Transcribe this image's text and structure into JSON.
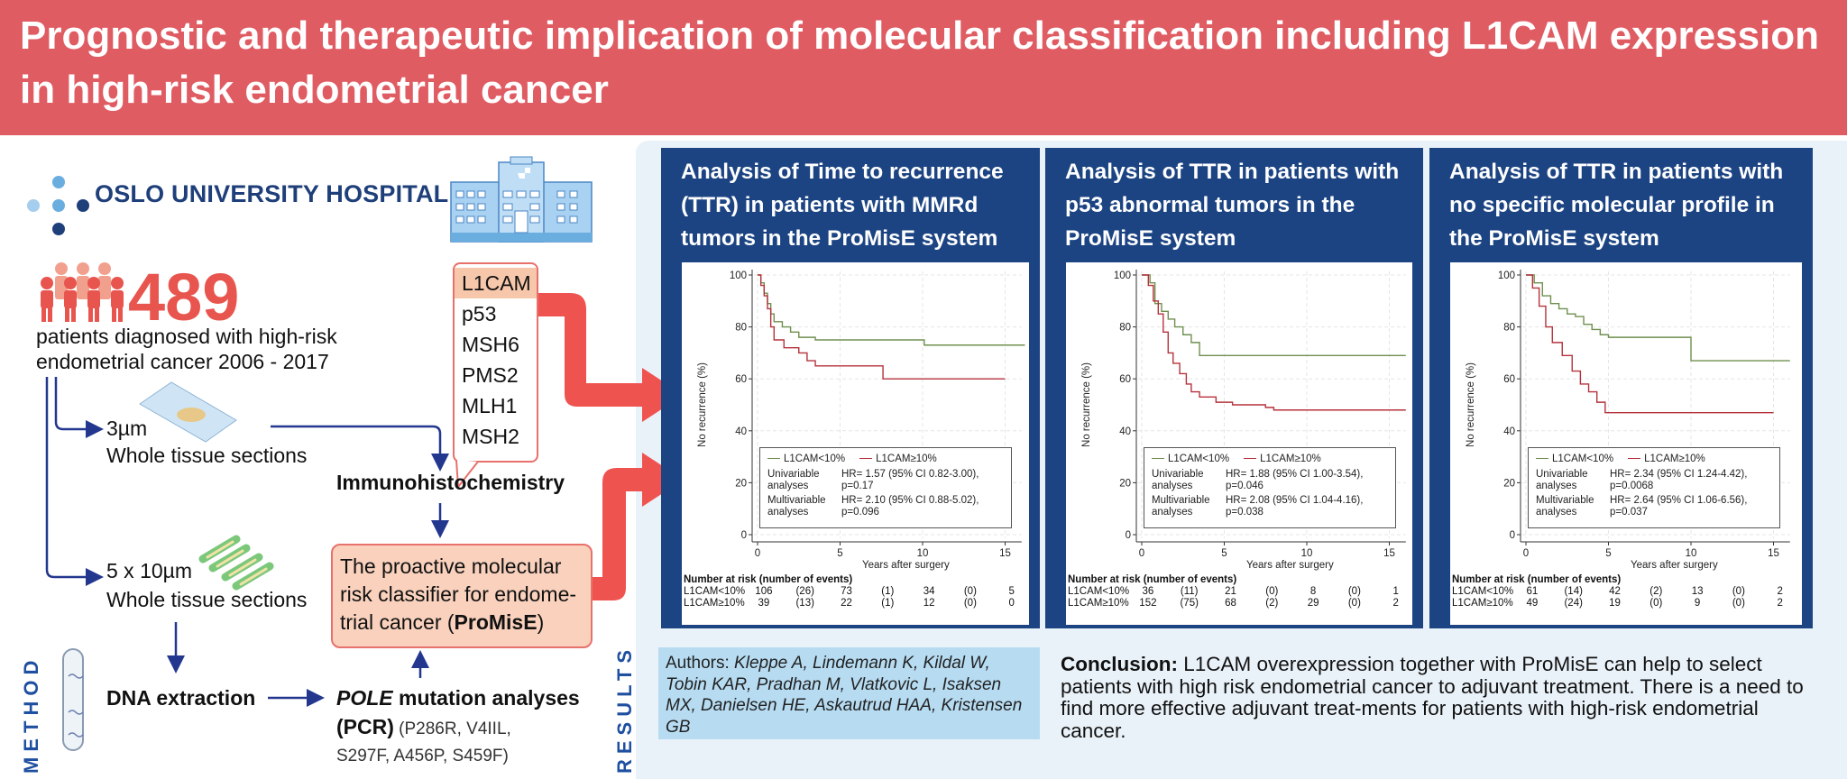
{
  "header": {
    "title": "Prognostic and therapeutic implication of molecular classification including L1CAM expression in high-risk endometrial cancer"
  },
  "colors": {
    "header": "#e05c63",
    "accent_red": "#e8554e",
    "panel_blue": "#1c4483",
    "flow_blue": "#23378f",
    "results_bg": "#eaf2f9",
    "authors_bg": "#b7dcf2",
    "promise_bg": "#f9d1bd"
  },
  "method": {
    "label": "METHOD",
    "logo_text": "OSLO UNIVERSITY HOSPITAL",
    "patient_count": "489",
    "patient_desc_1": "patients diagnosed with high-risk",
    "patient_desc_2": "endometrial cancer 2006 - 2017",
    "section_3um": "3µm",
    "section_3um_desc": "Whole tissue sections",
    "section_10um": "5 x 10µm",
    "section_10um_desc": "Whole tissue sections",
    "ihc_markers": [
      "L1CAM",
      "p53",
      "MSH6",
      "PMS2",
      "MLH1",
      "MSH2"
    ],
    "ihc_label": "Immunohistochemistry",
    "promise_text": "The proactive molecular risk classifier for endome-trial cancer (",
    "promise_bold": "ProMisE",
    "promise_close": ")",
    "dna_label": "DNA extraction",
    "pole_italic": "POLE",
    "pole_rest": " mutation analyses",
    "pcr_bold": "(PCR)",
    "pcr_mutations": " (P286R, V4IIL, S297F, A456P, S459F)"
  },
  "results": {
    "label": "RESULTS",
    "authors_label": "Authors: ",
    "authors_names": "Kleppe A, Lindemann K, Kildal W, Tobin KAR, Pradhan M, Vlatkovic L, Isaksen MX, Danielsen HE, Askautrud HAA, Kristensen GB",
    "conclusion_label": "Conclusion:",
    "conclusion_text": " L1CAM overexpression together with ProMisE can help to select patients with high risk endometrial cancer to adjuvant treatment. There is a need to find more effective adjuvant treat-ments for patients with high-risk endometrial cancer."
  },
  "chart_data": [
    {
      "type": "line",
      "title": "Analysis of Time to recurrence (TTR) in patients with MMRd tumors in the ProMisE system",
      "ylabel": "No recurrence (%)",
      "xlabel": "Years after surgery",
      "xlim": [
        0,
        16
      ],
      "ylim": [
        0,
        100
      ],
      "xticks": [
        0,
        5,
        10,
        15
      ],
      "yticks": [
        0,
        20,
        40,
        60,
        80,
        100
      ],
      "grid": true,
      "series": [
        {
          "name": "L1CAM<10%",
          "color": "#6f8f4f",
          "points": [
            [
              0,
              100
            ],
            [
              0.2,
              97
            ],
            [
              0.4,
              93
            ],
            [
              0.6,
              89
            ],
            [
              0.8,
              85
            ],
            [
              1,
              82
            ],
            [
              1.5,
              80
            ],
            [
              2,
              78
            ],
            [
              2.5,
              76
            ],
            [
              3.5,
              75
            ],
            [
              10,
              75
            ],
            [
              10.1,
              73
            ],
            [
              16.2,
              73
            ]
          ]
        },
        {
          "name": "L1CAM≥10%",
          "color": "#b5323c",
          "points": [
            [
              0,
              100
            ],
            [
              0.2,
              96
            ],
            [
              0.4,
              92
            ],
            [
              0.6,
              87
            ],
            [
              0.8,
              80
            ],
            [
              1,
              75
            ],
            [
              1.6,
              72
            ],
            [
              2.5,
              70
            ],
            [
              3,
              67
            ],
            [
              3.5,
              65
            ],
            [
              7.5,
              65
            ],
            [
              7.6,
              60
            ],
            [
              15,
              60
            ]
          ]
        }
      ],
      "stats": [
        {
          "label": "Univariable analyses",
          "text": "HR= 1.57 (95% CI 0.82-3.00), p=0.17"
        },
        {
          "label": "Multivariable analyses",
          "text": "HR= 2.10 (95% CI 0.88-5.02), p=0.096"
        }
      ],
      "risk_table": {
        "title": "Number at risk (number of events)",
        "rows": [
          {
            "label": "L1CAM<10%",
            "values": [
              "106",
              "(26)",
              "73",
              "(1)",
              "34",
              "(0)",
              "5"
            ]
          },
          {
            "label": "L1CAM≥10%",
            "values": [
              "39",
              "(13)",
              "22",
              "(1)",
              "12",
              "(0)",
              "0"
            ]
          }
        ]
      }
    },
    {
      "type": "line",
      "title": "Analysis of TTR in patients with p53 abnormal tumors in the ProMisE system",
      "ylabel": "No recurrence (%)",
      "xlabel": "Years after surgery",
      "xlim": [
        0,
        16
      ],
      "ylim": [
        0,
        100
      ],
      "xticks": [
        0,
        5,
        10,
        15
      ],
      "yticks": [
        0,
        20,
        40,
        60,
        80,
        100
      ],
      "grid": true,
      "series": [
        {
          "name": "L1CAM<10%",
          "color": "#6f8f4f",
          "points": [
            [
              0,
              100
            ],
            [
              0.5,
              97
            ],
            [
              0.8,
              89
            ],
            [
              1.2,
              86
            ],
            [
              1.6,
              83
            ],
            [
              2,
              80
            ],
            [
              2.5,
              77
            ],
            [
              3,
              74
            ],
            [
              3.5,
              69
            ],
            [
              16,
              69
            ]
          ]
        },
        {
          "name": "L1CAM≥10%",
          "color": "#b5323c",
          "points": [
            [
              0,
              100
            ],
            [
              0.4,
              96
            ],
            [
              0.7,
              90
            ],
            [
              1,
              85
            ],
            [
              1.3,
              78
            ],
            [
              1.6,
              70
            ],
            [
              1.9,
              66
            ],
            [
              2.3,
              62
            ],
            [
              2.7,
              58
            ],
            [
              3,
              55
            ],
            [
              3.5,
              53
            ],
            [
              4.5,
              51
            ],
            [
              5.5,
              50
            ],
            [
              7.5,
              49
            ],
            [
              8,
              48
            ],
            [
              16,
              48
            ]
          ]
        }
      ],
      "stats": [
        {
          "label": "Univariable analyses",
          "text": "HR= 1.88 (95% CI 1.00-3.54), p=0.046"
        },
        {
          "label": "Multivariable analyses",
          "text": "HR= 2.08 (95% CI 1.04-4.16), p=0.038"
        }
      ],
      "risk_table": {
        "title": "Number at risk (number of events)",
        "rows": [
          {
            "label": "L1CAM<10%",
            "values": [
              "36",
              "(11)",
              "21",
              "(0)",
              "8",
              "(0)",
              "1"
            ]
          },
          {
            "label": "L1CAM≥10%",
            "values": [
              "152",
              "(75)",
              "68",
              "(2)",
              "29",
              "(0)",
              "2"
            ]
          }
        ]
      }
    },
    {
      "type": "line",
      "title": "Analysis of TTR in patients with no specific molecular profile in the ProMisE system",
      "ylabel": "No recurrence (%)",
      "xlabel": "Years after surgery",
      "xlim": [
        0,
        16
      ],
      "ylim": [
        0,
        100
      ],
      "xticks": [
        0,
        5,
        10,
        15
      ],
      "yticks": [
        0,
        20,
        40,
        60,
        80,
        100
      ],
      "grid": true,
      "series": [
        {
          "name": "L1CAM<10%",
          "color": "#6f8f4f",
          "points": [
            [
              0,
              100
            ],
            [
              0.5,
              97
            ],
            [
              1,
              92
            ],
            [
              1.5,
              89
            ],
            [
              2,
              87
            ],
            [
              2.5,
              85
            ],
            [
              3,
              84
            ],
            [
              3.5,
              81
            ],
            [
              4,
              79
            ],
            [
              4.5,
              77
            ],
            [
              5,
              76
            ],
            [
              9.5,
              76
            ],
            [
              10,
              67
            ],
            [
              16,
              67
            ]
          ]
        },
        {
          "name": "L1CAM≥10%",
          "color": "#b5323c",
          "points": [
            [
              0,
              100
            ],
            [
              0.4,
              95
            ],
            [
              0.8,
              88
            ],
            [
              1.2,
              80
            ],
            [
              1.6,
              74
            ],
            [
              2.2,
              69
            ],
            [
              2.8,
              63
            ],
            [
              3.3,
              58
            ],
            [
              3.8,
              55
            ],
            [
              4.3,
              51
            ],
            [
              4.8,
              47
            ],
            [
              15,
              47
            ]
          ]
        }
      ],
      "stats": [
        {
          "label": "Univariable analyses",
          "text": "HR= 2.34 (95% CI 1.24-4.42), p=0.0068"
        },
        {
          "label": "Multivariable analyses",
          "text": "HR= 2.64 (95% CI 1.06-6.56), p=0.037"
        }
      ],
      "risk_table": {
        "title": "Number at risk (number of events)",
        "rows": [
          {
            "label": "L1CAM<10%",
            "values": [
              "61",
              "(14)",
              "42",
              "(2)",
              "13",
              "(0)",
              "2"
            ]
          },
          {
            "label": "L1CAM≥10%",
            "values": [
              "49",
              "(24)",
              "19",
              "(0)",
              "9",
              "(0)",
              "2"
            ]
          }
        ]
      }
    }
  ]
}
